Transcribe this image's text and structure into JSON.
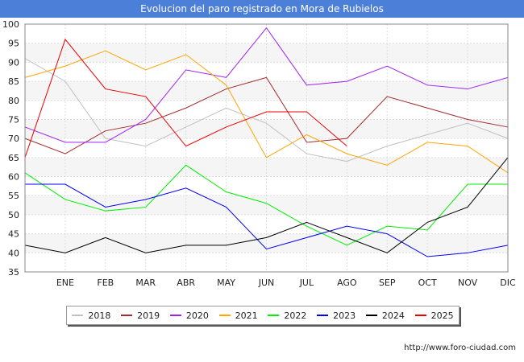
{
  "header": {
    "title": "Evolucion del paro registrado en Mora de Rubielos"
  },
  "footer": {
    "url": "http://www.foro-ciudad.com"
  },
  "chart_data": {
    "type": "line",
    "title": "Evolucion del paro registrado en Mora de Rubielos",
    "categories": [
      "",
      "ENE",
      "FEB",
      "MAR",
      "ABR",
      "MAY",
      "JUN",
      "JUL",
      "AGO",
      "SEP",
      "OCT",
      "NOV",
      "DIC"
    ],
    "ylim": [
      35,
      100
    ],
    "yticks": [
      35,
      40,
      45,
      50,
      55,
      60,
      65,
      70,
      75,
      80,
      85,
      90,
      95,
      100
    ],
    "grid": true,
    "legend_position": "bottom",
    "series": [
      {
        "name": "2018",
        "color": "#c0c0c0",
        "values": [
          91,
          85,
          70,
          68,
          73,
          78,
          74,
          66,
          64,
          68,
          71,
          74,
          70
        ]
      },
      {
        "name": "2019",
        "color": "#a52a2a",
        "values": [
          70,
          66,
          72,
          74,
          78,
          83,
          86,
          69,
          70,
          81,
          78,
          75,
          73
        ]
      },
      {
        "name": "2020",
        "color": "#a020f0",
        "values": [
          73,
          69,
          69,
          75,
          88,
          86,
          99,
          84,
          85,
          89,
          84,
          83,
          86
        ]
      },
      {
        "name": "2021",
        "color": "#ffa500",
        "values": [
          86,
          89,
          93,
          88,
          92,
          84,
          65,
          71,
          66,
          63,
          69,
          68,
          61
        ]
      },
      {
        "name": "2022",
        "color": "#00ee00",
        "values": [
          61,
          54,
          51,
          52,
          63,
          56,
          53,
          47,
          42,
          47,
          46,
          58,
          58
        ]
      },
      {
        "name": "2023",
        "color": "#0000ee",
        "values": [
          58,
          58,
          52,
          54,
          57,
          52,
          41,
          44,
          47,
          45,
          39,
          40,
          42
        ]
      },
      {
        "name": "2024",
        "color": "#000000",
        "values": [
          42,
          40,
          44,
          40,
          42,
          42,
          44,
          48,
          44,
          40,
          48,
          52,
          65
        ]
      },
      {
        "name": "2025",
        "color": "#ee0000",
        "values": [
          65,
          96,
          83,
          81,
          68,
          73,
          77,
          77,
          68,
          null,
          null,
          null,
          null
        ]
      }
    ]
  }
}
